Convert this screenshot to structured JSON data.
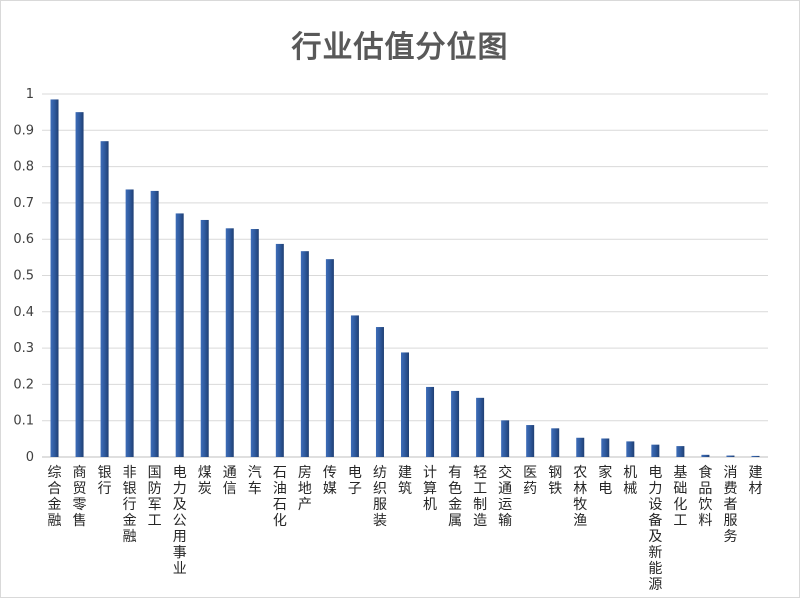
{
  "chart_data": {
    "type": "bar",
    "title": "行业估值分位图",
    "xlabel": "",
    "ylabel": "",
    "ylim": [
      0,
      1
    ],
    "yticks": [
      0,
      0.1,
      0.2,
      0.3,
      0.4,
      0.5,
      0.6,
      0.7,
      0.8,
      0.9,
      1
    ],
    "ytick_labels": [
      "0",
      "0.1",
      "0.2",
      "0.3",
      "0.4",
      "0.5",
      "0.6",
      "0.7",
      "0.8",
      "0.9",
      "1"
    ],
    "grid": true,
    "legend": "none",
    "bar_color": "#2F5A9E",
    "categories": [
      "综合金融",
      "商贸零售",
      "银行",
      "非银行金融",
      "国防军工",
      "电力及公用事业",
      "煤炭",
      "通信",
      "汽车",
      "石油石化",
      "房地产",
      "传媒",
      "电子",
      "纺织服装",
      "建筑",
      "计算机",
      "有色金属",
      "轻工制造",
      "交通运输",
      "医药",
      "钢铁",
      "农林牧渔",
      "家电",
      "机械",
      "电力设备及新能源",
      "基础化工",
      "食品饮料",
      "消费者服务",
      "建材"
    ],
    "values": [
      0.985,
      0.95,
      0.87,
      0.737,
      0.733,
      0.671,
      0.653,
      0.63,
      0.628,
      0.587,
      0.567,
      0.545,
      0.39,
      0.358,
      0.288,
      0.193,
      0.182,
      0.163,
      0.101,
      0.088,
      0.079,
      0.053,
      0.051,
      0.043,
      0.034,
      0.03,
      0.006,
      0.004,
      0.003
    ]
  }
}
